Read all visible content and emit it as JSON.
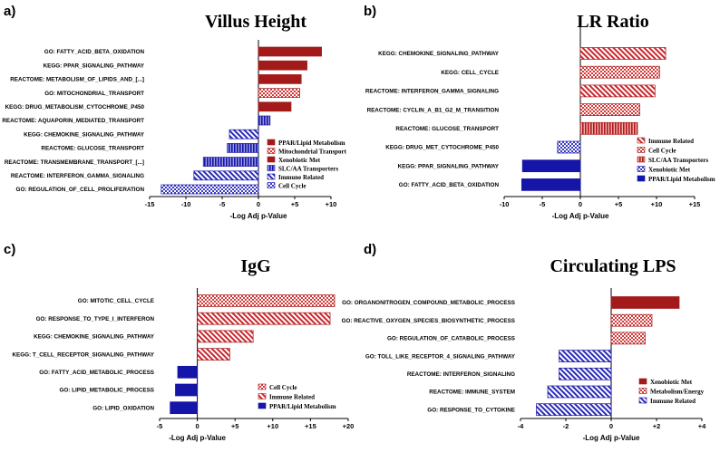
{
  "colors": {
    "dark_red": "#a31a1a",
    "light_red": "#e88a8a",
    "hatch_red": "#c8282e",
    "blue": "#1515a8",
    "check_blue": "#5555c8"
  },
  "chart_data": [
    {
      "panel": "a)",
      "type": "bar",
      "orientation": "horizontal",
      "title": "Villus Height",
      "xlabel": "-Log Adj p-Value",
      "xlim": [
        -15,
        10
      ],
      "xticks": [
        -15,
        -10,
        -5,
        0,
        5,
        10
      ],
      "xtick_labels": [
        "-15",
        "-10",
        "-5",
        "0",
        "+5",
        "+10"
      ],
      "categories": [
        "GO: FATTY_ACID_BETA_OXIDATION",
        "KEGG: PPAR_SIGNALING_PATHWAY",
        "REACTOME: METABOLISM_OF_LIPIDS_AND_[...]",
        "GO: MITOCHONDRIAL_TRANSPORT",
        "KEGG: DRUG_METABOLISM_CYTOCHROME_P450",
        "REACTOME: AQUAPORIN_MEDIATED_TRANSPORT",
        "KEGG: CHEMOKINE_SIGNALING_PATHWAY",
        "REACTOME: GLUCOSE_TRANSPORT",
        "REACTOME: TRANSMEMBRANE_TRANSPORT_[...]",
        "REACTOME: INTERFERON_GAMMA_SIGNALING",
        "GO: REGULATION_OF_CELL_PROLIFERATION"
      ],
      "values": [
        8.7,
        6.7,
        5.9,
        5.7,
        4.5,
        1.6,
        -4.0,
        -4.3,
        -7.6,
        -8.9,
        -13.4
      ],
      "groups": [
        "PPAR/Lipid Metabolism",
        "PPAR/Lipid Metabolism",
        "PPAR/Lipid Metabolism",
        "Mitochondrial Transport",
        "Xenobiotic Met",
        "SLC/AA Transporters",
        "Immune Related",
        "SLC/AA Transporters",
        "SLC/AA Transporters",
        "Immune Related",
        "Cell Cycle"
      ],
      "legend": [
        {
          "label": "PPAR/Lipid Metabolism",
          "style": "solid_dark_red"
        },
        {
          "label": "Mitochondrial Transport",
          "style": "check_red"
        },
        {
          "label": "Xenobiotic Met",
          "style": "solid_dark_red"
        },
        {
          "label": "SLC/AA Transporters",
          "style": "vstripe_blue"
        },
        {
          "label": "Immune Related",
          "style": "diag_blue"
        },
        {
          "label": "Cell Cycle",
          "style": "check_blue"
        }
      ]
    },
    {
      "panel": "b)",
      "type": "bar",
      "orientation": "horizontal",
      "title": "LR Ratio",
      "xlabel": "-Log Adj p-Value",
      "xlim": [
        -10,
        15
      ],
      "xticks": [
        -10,
        -5,
        0,
        5,
        10,
        15
      ],
      "xtick_labels": [
        "-10",
        "-5",
        "0",
        "+5",
        "+10",
        "+15"
      ],
      "categories": [
        "KEGG: CHEMOKINE_SIGNALING_PATHWAY",
        "KEGG: CELL_CYCLE",
        "REACTOME: INTERFERON_GAMMA_SIGNALING",
        "REACTOME: CYCLIN_A_B1_G2_M_TRANSITION",
        "REACTOME: GLUCOSE_TRANSPORT",
        "KEGG: DRUG_MET_CYTOCHROME_P450",
        "KEGG: PPAR_SIGNALING_PATHWAY",
        "GO: FATTY_ACID_BETA_OXIDATION"
      ],
      "values": [
        11.2,
        10.4,
        9.8,
        7.8,
        7.5,
        -3.0,
        -7.6,
        -7.7
      ],
      "groups": [
        "Immune Related",
        "Cell Cycle",
        "Immune Related",
        "Cell Cycle",
        "SLC/AA Transporters",
        "Xenobiotic Met",
        "PPAR/Lipid Metabolism",
        "PPAR/Lipid Metabolism"
      ],
      "legend": [
        {
          "label": "Immune Related",
          "style": "diag_red"
        },
        {
          "label": "Cell Cycle",
          "style": "check_red"
        },
        {
          "label": "SLC/AA Transporters",
          "style": "vstripe_red"
        },
        {
          "label": "Xenobiotic Met",
          "style": "check_blue"
        },
        {
          "label": "PPAR/Lipid Metabolism",
          "style": "solid_blue"
        }
      ]
    },
    {
      "panel": "c)",
      "type": "bar",
      "orientation": "horizontal",
      "title": "IgG",
      "xlabel": "-Log Adj p-Value",
      "xlim": [
        -5,
        20
      ],
      "xticks": [
        -5,
        0,
        5,
        10,
        15,
        20
      ],
      "xtick_labels": [
        "-5",
        "0",
        "+5",
        "+10",
        "+15",
        "+20"
      ],
      "categories": [
        "GO: MITOTIC_CELL_CYCLE",
        "GO: RESPONSE_TO_TYPE_I_INTERFERON",
        "KEGG: CHEMOKINE_SIGNALING_PATHWAY",
        "KEGG: T_CELL_RECEPTOR_SIGNALING_PATHWAY",
        "GO: FATTY_ACID_METABOLIC_PROCESS",
        "GO: LIPID_METABOLIC_PROCESS",
        "GO: LIPID_OXIDATION"
      ],
      "values": [
        18.2,
        17.6,
        7.4,
        4.3,
        -2.6,
        -2.9,
        -3.6
      ],
      "groups": [
        "Cell Cycle",
        "Immune Related",
        "Immune Related",
        "Immune Related",
        "PPAR/Lipid Metabolism",
        "PPAR/Lipid Metabolism",
        "PPAR/Lipid Metabolism"
      ],
      "legend": [
        {
          "label": "Cell Cycle",
          "style": "check_red"
        },
        {
          "label": "Immune Related",
          "style": "diag_red"
        },
        {
          "label": "PPAR/Lipid Metabolism",
          "style": "solid_blue"
        }
      ]
    },
    {
      "panel": "d)",
      "type": "bar",
      "orientation": "horizontal",
      "title": "Circulating LPS",
      "xlabel": "-Log Adj p-Value",
      "xlim": [
        -4,
        4
      ],
      "xticks": [
        -4,
        -2,
        0,
        2,
        4
      ],
      "xtick_labels": [
        "-4",
        "-2",
        "0",
        "+2",
        "+4"
      ],
      "categories": [
        "GO: ORGANONITROGEN_COMPOUND_METABOLIC_PROCESS",
        "GO: REACTIVE_OXYGEN_SPECIES_BIOSYNTHETIC_PROCESS",
        "GO: REGULATION_OF_CATABOLIC_PROCESS",
        "GO: TOLL_LIKE_RECEPTOR_4_SIGNALING_PATHWAY",
        "REACTOME: INTERFERON_SIGNALING",
        "REACTOME: IMMUNE_SYSTEM",
        "GO: RESPONSE_TO_CYTOKINE"
      ],
      "values": [
        3.0,
        1.8,
        1.5,
        -2.3,
        -2.3,
        -2.8,
        -3.3
      ],
      "groups": [
        "Xenobiotic Met",
        "Metabolism/Energy",
        "Metabolism/Energy",
        "Immune Related",
        "Immune Related",
        "Immune Related",
        "Immune Related"
      ],
      "legend": [
        {
          "label": "Xenobiotic Met",
          "style": "solid_dark_red"
        },
        {
          "label": "Metabolism/Energy",
          "style": "check_red"
        },
        {
          "label": "Immune Related",
          "style": "diag_blue"
        }
      ]
    }
  ]
}
